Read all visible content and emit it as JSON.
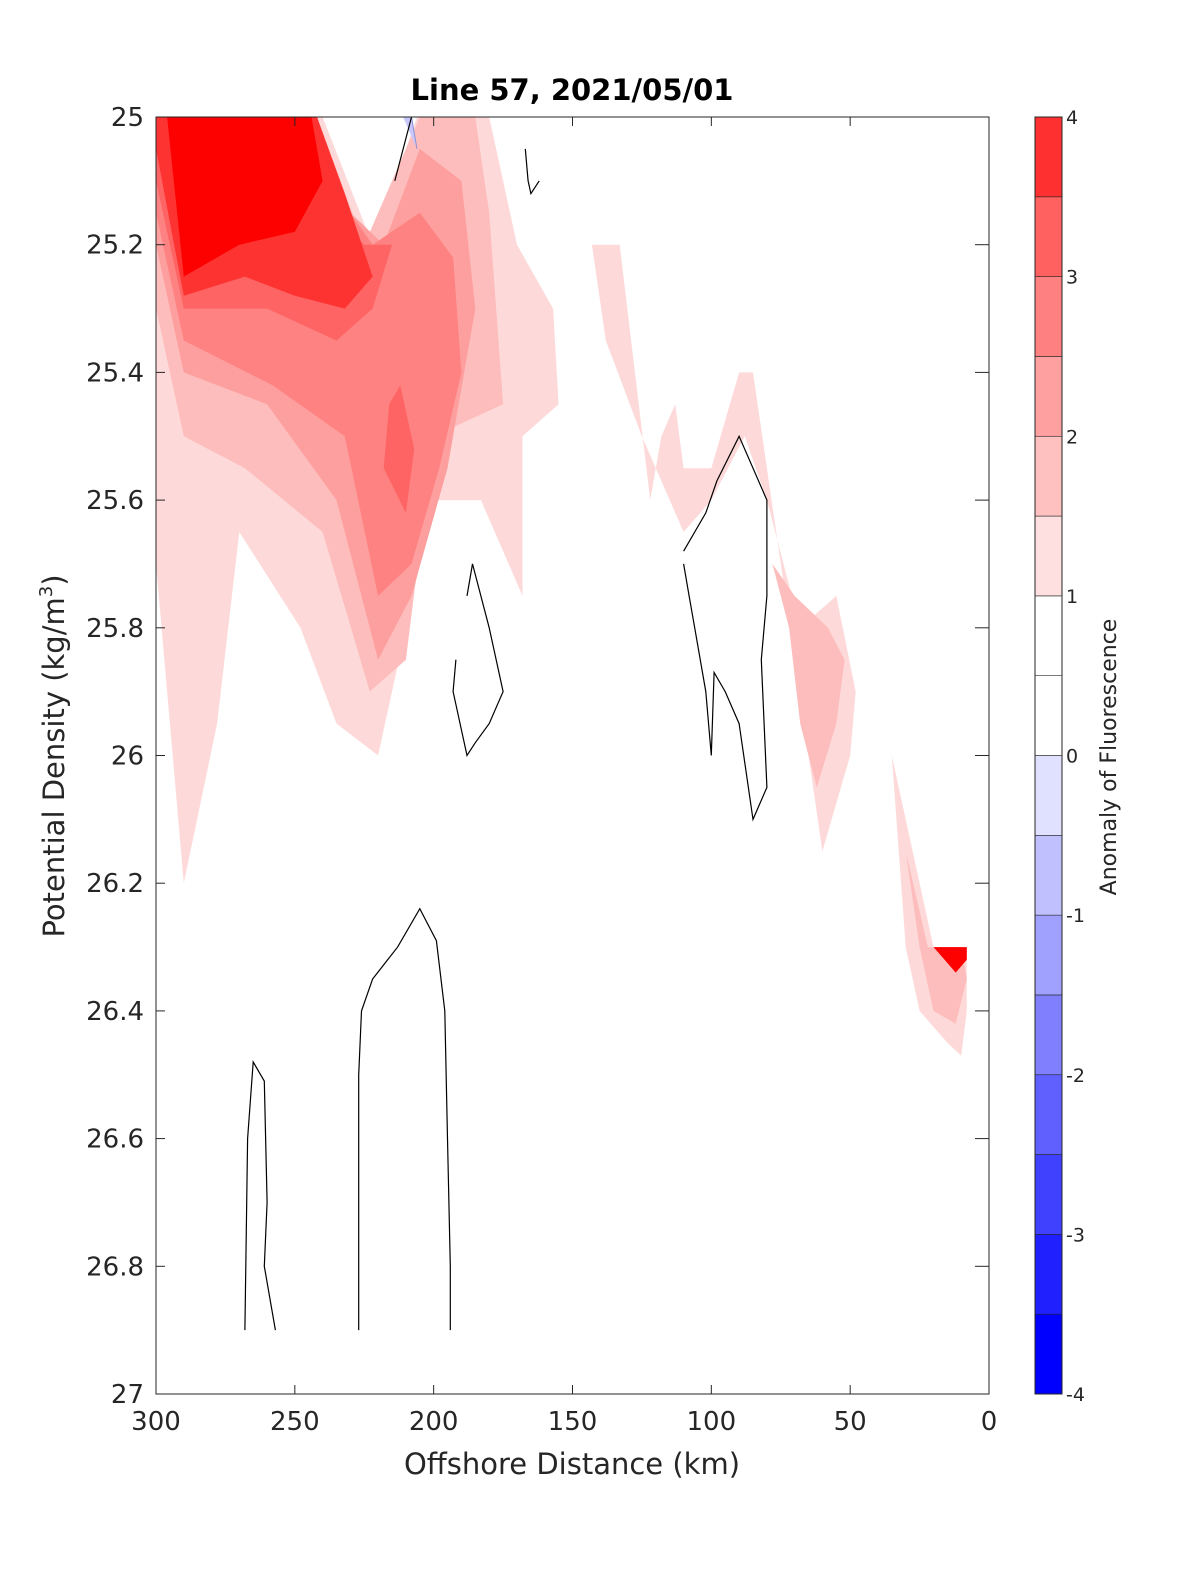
{
  "chart_data": {
    "type": "contour",
    "title": "Line 57, 2021/05/01",
    "xlabel": "Offshore Distance (km)",
    "ylabel_main": "Potential Density (kg/m",
    "ylabel_sup": "3",
    "ylabel_close": ")",
    "xlim": [
      300,
      0
    ],
    "ylim": [
      25,
      27
    ],
    "y_reversed": true,
    "x_ticks": [
      "300",
      "250",
      "200",
      "150",
      "100",
      "50",
      "0"
    ],
    "x_tick_values": [
      300,
      250,
      200,
      150,
      100,
      50,
      0
    ],
    "y_ticks": [
      "25",
      "25.2",
      "25.4",
      "25.6",
      "25.8",
      "26",
      "26.2",
      "26.4",
      "26.6",
      "26.8",
      "27"
    ],
    "y_tick_values": [
      25,
      25.2,
      25.4,
      25.6,
      25.8,
      26,
      26.2,
      26.4,
      26.6,
      26.8,
      27
    ],
    "colorbar": {
      "label": "Anomaly of Fluorescence",
      "range": [
        -4,
        4
      ],
      "ticks": [
        "4",
        "3",
        "2",
        "1",
        "0",
        "-1",
        "-2",
        "-3",
        "-4"
      ],
      "tick_values": [
        4,
        3,
        2,
        1,
        0,
        -1,
        -2,
        -3,
        -4
      ],
      "levels": [
        -4,
        -3.5,
        -3,
        -2.5,
        -2,
        -1.5,
        -1,
        -0.5,
        0,
        0.5,
        1,
        1.5,
        2,
        2.5,
        3,
        3.5,
        4
      ],
      "colors": [
        "#0000ff",
        "#2020ff",
        "#4040ff",
        "#6060ff",
        "#8080ff",
        "#a0a0ff",
        "#c0c0ff",
        "#e0e0ff",
        "#ffffff",
        "#ffffff",
        "#ffe0e0",
        "#ffc0c0",
        "#ffa0a0",
        "#ff8080",
        "#ff6060",
        "#ff3030",
        "#ff0000"
      ]
    },
    "fills": [
      {
        "level": 0.5,
        "color": "#fddad9",
        "points": [
          [
            300,
            25
          ],
          [
            240,
            25
          ],
          [
            222,
            25.2
          ],
          [
            206,
            25
          ],
          [
            180,
            25
          ],
          [
            170,
            25.2
          ],
          [
            157,
            25.3
          ],
          [
            155,
            25.45
          ],
          [
            168,
            25.5
          ],
          [
            168,
            25.75
          ],
          [
            183,
            25.6
          ],
          [
            200,
            25.6
          ],
          [
            220,
            26.0
          ],
          [
            235,
            25.95
          ],
          [
            248,
            25.8
          ],
          [
            270,
            25.65
          ],
          [
            278,
            25.95
          ],
          [
            290,
            26.2
          ],
          [
            300,
            25.7
          ]
        ]
      },
      {
        "level": 0.5,
        "color": "#fddad9",
        "points": [
          [
            143,
            25.2
          ],
          [
            133,
            25.2
          ],
          [
            122,
            25.6
          ],
          [
            118,
            25.5
          ],
          [
            113,
            25.45
          ],
          [
            110,
            25.55
          ],
          [
            100,
            25.55
          ],
          [
            90,
            25.4
          ],
          [
            85,
            25.4
          ],
          [
            75,
            25.7
          ],
          [
            65,
            26.0
          ],
          [
            60,
            26.15
          ],
          [
            50,
            26.0
          ],
          [
            48,
            25.9
          ],
          [
            55,
            25.75
          ],
          [
            68,
            25.8
          ],
          [
            80,
            25.6
          ],
          [
            88,
            25.5
          ],
          [
            100,
            25.6
          ],
          [
            110,
            25.65
          ],
          [
            125,
            25.5
          ],
          [
            138,
            25.35
          ]
        ]
      },
      {
        "level": 0.5,
        "color": "#fddad9",
        "points": [
          [
            35,
            26.0
          ],
          [
            30,
            26.3
          ],
          [
            25,
            26.4
          ],
          [
            15,
            26.45
          ],
          [
            10,
            26.47
          ],
          [
            8,
            26.4
          ],
          [
            8,
            26.3
          ],
          [
            20,
            26.3
          ]
        ]
      },
      {
        "level": 1.0,
        "color": "#fdbdbc",
        "points": [
          [
            300,
            25
          ],
          [
            242,
            25
          ],
          [
            225,
            25.2
          ],
          [
            205,
            25
          ],
          [
            185,
            25
          ],
          [
            180,
            25.15
          ],
          [
            175,
            25.45
          ],
          [
            200,
            25.5
          ],
          [
            210,
            25.85
          ],
          [
            223,
            25.9
          ],
          [
            240,
            25.65
          ],
          [
            268,
            25.55
          ],
          [
            290,
            25.5
          ],
          [
            300,
            25.3
          ]
        ]
      },
      {
        "level": 1.0,
        "color": "#fdbdbc",
        "points": [
          [
            78,
            25.7
          ],
          [
            72,
            25.8
          ],
          [
            68,
            25.95
          ],
          [
            62,
            26.05
          ],
          [
            55,
            25.95
          ],
          [
            52,
            25.85
          ],
          [
            58,
            25.8
          ],
          [
            70,
            25.75
          ]
        ]
      },
      {
        "level": 1.0,
        "color": "#fdbdbc",
        "points": [
          [
            30,
            26.15
          ],
          [
            25,
            26.3
          ],
          [
            20,
            26.4
          ],
          [
            12,
            26.42
          ],
          [
            8,
            26.35
          ],
          [
            10,
            26.3
          ],
          [
            22,
            26.3
          ]
        ]
      },
      {
        "level": 1.5,
        "color": "#fd9f9e",
        "points": [
          [
            300,
            25
          ],
          [
            245,
            25
          ],
          [
            230,
            25.15
          ],
          [
            218,
            25.2
          ],
          [
            205,
            25.05
          ],
          [
            190,
            25.1
          ],
          [
            185,
            25.3
          ],
          [
            195,
            25.55
          ],
          [
            208,
            25.75
          ],
          [
            220,
            25.85
          ],
          [
            235,
            25.6
          ],
          [
            260,
            25.45
          ],
          [
            290,
            25.4
          ],
          [
            300,
            25.2
          ]
        ]
      },
      {
        "level": 2.0,
        "color": "#fd8281",
        "points": [
          [
            300,
            25
          ],
          [
            248,
            25
          ],
          [
            235,
            25.12
          ],
          [
            222,
            25.2
          ],
          [
            205,
            25.15
          ],
          [
            193,
            25.22
          ],
          [
            190,
            25.4
          ],
          [
            198,
            25.55
          ],
          [
            208,
            25.7
          ],
          [
            220,
            25.75
          ],
          [
            232,
            25.5
          ],
          [
            258,
            25.42
          ],
          [
            290,
            25.35
          ],
          [
            300,
            25.15
          ]
        ]
      },
      {
        "level": 2.5,
        "color": "#fd6463",
        "points": [
          [
            300,
            25
          ],
          [
            250,
            25
          ],
          [
            238,
            25.15
          ],
          [
            225,
            25.2
          ],
          [
            215,
            25.2
          ],
          [
            222,
            25.3
          ],
          [
            235,
            25.35
          ],
          [
            260,
            25.3
          ],
          [
            290,
            25.3
          ],
          [
            300,
            25.1
          ]
        ]
      },
      {
        "level": 2.5,
        "color": "#fd6463",
        "points": [
          [
            212,
            25.42
          ],
          [
            207,
            25.52
          ],
          [
            210,
            25.62
          ],
          [
            218,
            25.55
          ],
          [
            216,
            25.45
          ]
        ]
      },
      {
        "level": 3.0,
        "color": "#fd3332",
        "points": [
          [
            300,
            25
          ],
          [
            242,
            25
          ],
          [
            232,
            25.12
          ],
          [
            222,
            25.25
          ],
          [
            232,
            25.3
          ],
          [
            250,
            25.28
          ],
          [
            268,
            25.25
          ],
          [
            290,
            25.28
          ],
          [
            300,
            25.05
          ]
        ]
      },
      {
        "level": 3.5,
        "color": "#fd0000",
        "points": [
          [
            296,
            25
          ],
          [
            244,
            25
          ],
          [
            240,
            25.1
          ],
          [
            250,
            25.18
          ],
          [
            270,
            25.2
          ],
          [
            290,
            25.25
          ]
        ]
      },
      {
        "level": 3.5,
        "color": "#fd0000",
        "points": [
          [
            20,
            26.3
          ],
          [
            16,
            26.32
          ],
          [
            12,
            26.34
          ],
          [
            8,
            26.32
          ],
          [
            8,
            26.3
          ]
        ]
      }
    ],
    "contours_zero": [
      [
        [
          268,
          26.9
        ],
        [
          267,
          26.6
        ],
        [
          265,
          26.48
        ],
        [
          261,
          26.51
        ],
        [
          260,
          26.7
        ],
        [
          261,
          26.8
        ],
        [
          257,
          26.9
        ]
      ],
      [
        [
          227,
          26.9
        ],
        [
          227,
          26.5
        ],
        [
          226,
          26.4
        ],
        [
          222,
          26.35
        ],
        [
          213,
          26.3
        ],
        [
          205,
          26.24
        ],
        [
          199,
          26.29
        ],
        [
          196,
          26.4
        ],
        [
          195,
          26.6
        ],
        [
          194,
          26.8
        ],
        [
          194,
          26.9
        ]
      ],
      [
        [
          188,
          25.75
        ],
        [
          186,
          25.7
        ],
        [
          180,
          25.8
        ],
        [
          175,
          25.9
        ],
        [
          180,
          25.95
        ],
        [
          185,
          25.98
        ],
        [
          188,
          26.0
        ],
        [
          193,
          25.9
        ],
        [
          192,
          25.85
        ]
      ],
      [
        [
          110,
          25.68
        ],
        [
          102,
          25.62
        ],
        [
          98,
          25.57
        ],
        [
          90,
          25.5
        ],
        [
          80,
          25.6
        ],
        [
          80,
          25.75
        ],
        [
          82,
          25.85
        ],
        [
          80,
          26.05
        ],
        [
          85,
          26.1
        ],
        [
          90,
          25.95
        ],
        [
          95,
          25.9
        ],
        [
          99,
          25.87
        ],
        [
          100,
          26.0
        ],
        [
          102,
          25.9
        ],
        [
          106,
          25.8
        ],
        [
          108,
          25.75
        ],
        [
          110,
          25.7
        ]
      ],
      [
        [
          167,
          25.05
        ],
        [
          166,
          25.1
        ],
        [
          165,
          25.12
        ],
        [
          162,
          25.1
        ]
      ],
      [
        [
          214,
          25.1
        ],
        [
          208,
          25
        ]
      ]
    ],
    "negative_patch": [
      [
        211,
        25
      ],
      [
        208,
        25
      ],
      [
        206,
        25.05
      ]
    ]
  }
}
